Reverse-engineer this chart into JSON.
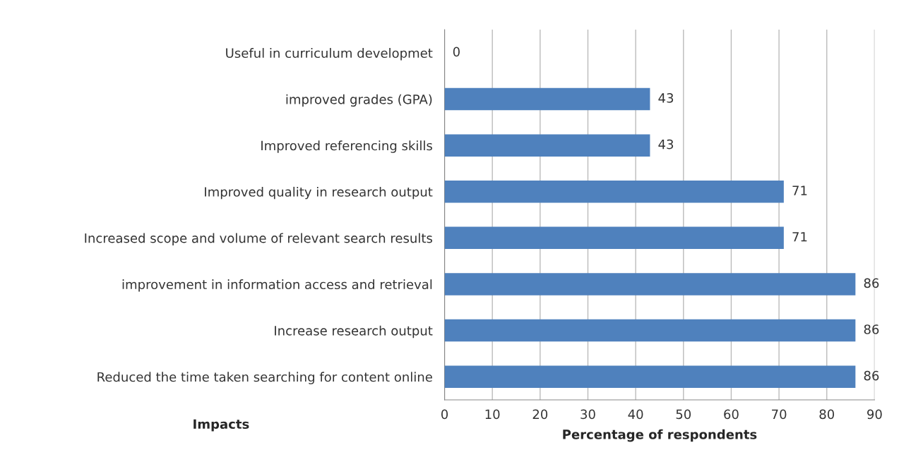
{
  "chart_data": {
    "type": "bar",
    "orientation": "horizontal",
    "xlabel": "Percentage of respondents",
    "ylabel": "Impacts",
    "categories": [
      "Useful in curriculum developmet",
      "improved grades (GPA)",
      "Improved referencing skills",
      "Improved quality in research output",
      "Increased scope and volume of relevant search results",
      "improvement in information access and retrieval",
      "Increase research output",
      "Reduced the time taken searching for content online"
    ],
    "values": [
      0,
      43,
      43,
      71,
      71,
      86,
      86,
      86
    ],
    "color": "#4f81bd",
    "xlim": [
      0,
      90
    ],
    "xticks": [
      0,
      10,
      20,
      30,
      40,
      50,
      60,
      70,
      80,
      90
    ],
    "grid": "x",
    "data_labels": true
  }
}
